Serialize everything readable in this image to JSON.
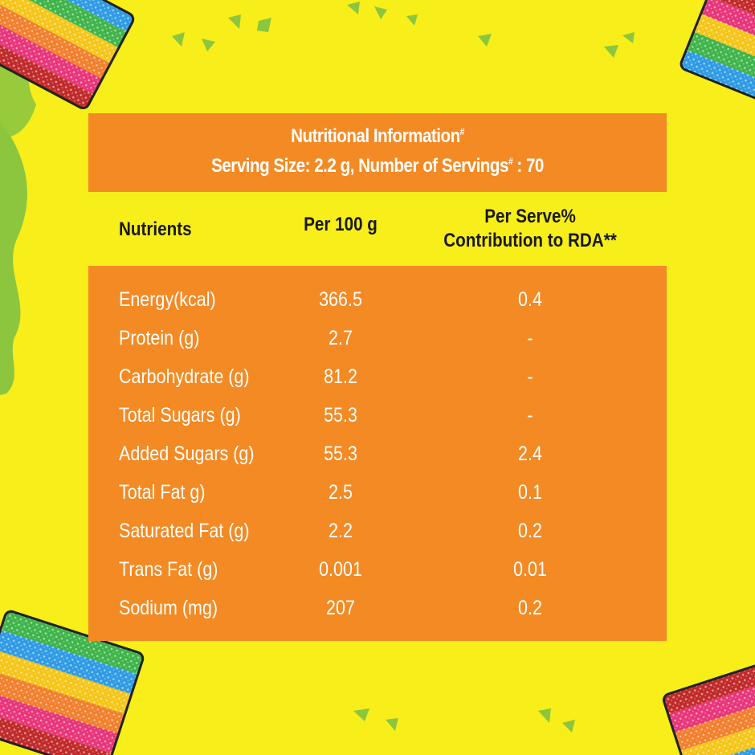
{
  "colors": {
    "background": "#f7ee1a",
    "panel_orange": "#f48a24",
    "leaf_green": "#8cc63f",
    "text_dark": "#1a1a1a",
    "text_light": "#ffffff"
  },
  "icons": [
    "rainbow-candy-icon",
    "leaf-confetti-icon"
  ],
  "header": {
    "title": "Nutritional Information",
    "title_mark": "#",
    "serving_prefix": "Serving Size: 2.2 g, Number of Servings",
    "serving_mark": "#",
    "serving_suffix": " : 70"
  },
  "columns": {
    "nutrients": "Nutrients",
    "per100": "Per 100 g",
    "rda_line1": "Per Serve%",
    "rda_line2": "Contribution to RDA**"
  },
  "rows": [
    {
      "name": "Energy(kcal)",
      "per100": "366.5",
      "rda": "0.4"
    },
    {
      "name": "Protein (g)",
      "per100": "2.7",
      "rda": "-"
    },
    {
      "name": "Carbohydrate (g)",
      "per100": "81.2",
      "rda": "-"
    },
    {
      "name": "Total Sugars (g)",
      "per100": "55.3",
      "rda": "-"
    },
    {
      "name": "Added Sugars (g)",
      "per100": "55.3",
      "rda": "2.4"
    },
    {
      "name": "Total Fat g)",
      "per100": "2.5",
      "rda": "0.1"
    },
    {
      "name": "Saturated Fat (g)",
      "per100": "2.2",
      "rda": "0.2"
    },
    {
      "name": "Trans Fat (g)",
      "per100": "0.001",
      "rda": "0.01"
    },
    {
      "name": "Sodium (mg)",
      "per100": "207",
      "rda": "0.2"
    }
  ]
}
